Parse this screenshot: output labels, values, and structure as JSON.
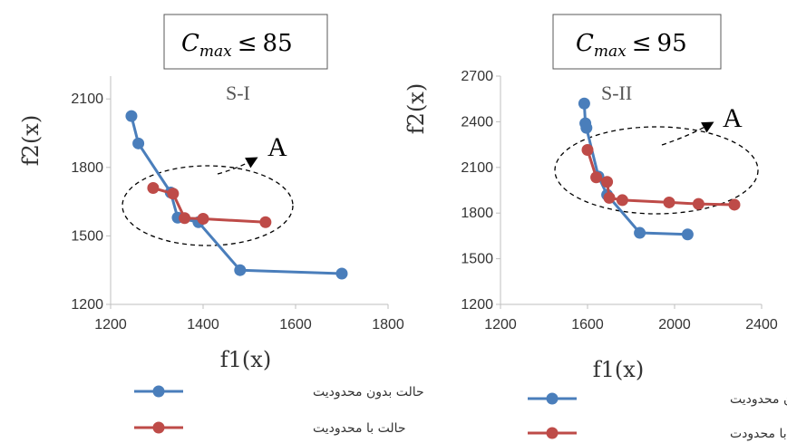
{
  "colors": {
    "series1": "#4a7ebb",
    "series2": "#be4b48",
    "axis": "#bfbfbf",
    "text": "#333333"
  },
  "chart_data": [
    {
      "type": "scatter",
      "title": "C_max ≤ 85",
      "title_parts": {
        "var": "C",
        "sub": "max",
        "op": "≤",
        "val": "85"
      },
      "panel_label": "S-I",
      "annotation": "A",
      "xlabel": "f1(x)",
      "ylabel": "f2(x)",
      "xlim": [
        1200,
        1800
      ],
      "ylim": [
        1200,
        2200
      ],
      "xticks": [
        1200,
        1400,
        1600,
        1800
      ],
      "yticks": [
        1200,
        1500,
        1800,
        2100
      ],
      "grid": false,
      "legend_position": "bottom",
      "series": [
        {
          "name": "حالت بدون محدودیت",
          "x": [
            1245,
            1260,
            1330,
            1345,
            1390,
            1480,
            1700
          ],
          "y": [
            2025,
            1905,
            1690,
            1580,
            1560,
            1350,
            1335
          ]
        },
        {
          "name": "حالت با محدودیت",
          "x": [
            1292,
            1335,
            1360,
            1400,
            1535
          ],
          "y": [
            1710,
            1685,
            1578,
            1575,
            1560
          ]
        }
      ]
    },
    {
      "type": "scatter",
      "title": "C_max ≤ 95",
      "title_parts": {
        "var": "C",
        "sub": "max",
        "op": "≤",
        "val": "95"
      },
      "panel_label": "S-II",
      "annotation": "A",
      "xlabel": "f1(x)",
      "ylabel": "f2(x)",
      "xlim": [
        1200,
        2400
      ],
      "ylim": [
        1200,
        2700
      ],
      "xticks": [
        1200,
        1600,
        2000,
        2400
      ],
      "yticks": [
        1200,
        1500,
        1800,
        2100,
        2400,
        2700
      ],
      "grid": false,
      "legend_position": "bottom",
      "series": [
        {
          "name": "حالت بدون محدودیت",
          "x": [
            1585,
            1590,
            1595,
            1650,
            1690,
            1840,
            2060
          ],
          "y": [
            2520,
            2390,
            2360,
            2040,
            1920,
            1670,
            1660
          ]
        },
        {
          "name": "حالت با محدودت",
          "x": [
            1600,
            1640,
            1690,
            1700,
            1760,
            1975,
            2110,
            2275
          ],
          "y": [
            2215,
            2035,
            2005,
            1900,
            1885,
            1870,
            1860,
            1855
          ]
        }
      ]
    }
  ]
}
